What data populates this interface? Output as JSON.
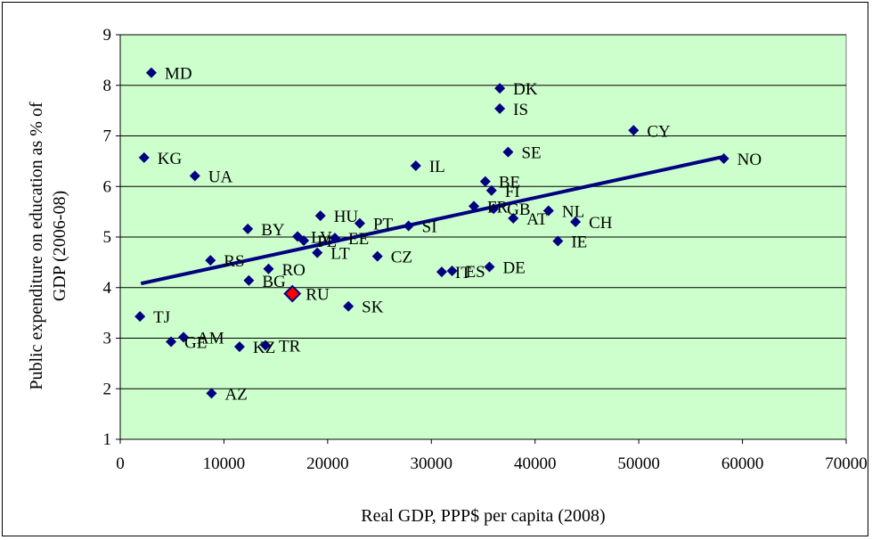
{
  "chart_data": {
    "type": "scatter",
    "title": "",
    "xlabel": "Real GDP, PPP$ per capita (2008)",
    "ylabel_line1": "Public expenditure on education as % of",
    "ylabel_line2": "GDP (2006-08)",
    "xlim": [
      0,
      70000
    ],
    "ylim": [
      1,
      9
    ],
    "x_ticks": [
      "0",
      "10000",
      "20000",
      "30000",
      "40000",
      "50000",
      "60000",
      "70000"
    ],
    "y_ticks": [
      "1",
      "2",
      "3",
      "4",
      "5",
      "6",
      "7",
      "8",
      "9"
    ],
    "grid": "horizontal",
    "plot_background": "#ccffcc",
    "marker_color": "#000080",
    "highlight_color": "#ff0000",
    "trendline": {
      "x": [
        2000,
        58000
      ],
      "y": [
        4.08,
        6.58
      ],
      "color": "#000080"
    },
    "points": [
      {
        "label": "MD",
        "x": 3000,
        "y": 8.25
      },
      {
        "label": "KG",
        "x": 2300,
        "y": 6.57
      },
      {
        "label": "UA",
        "x": 7200,
        "y": 6.21
      },
      {
        "label": "TJ",
        "x": 1900,
        "y": 3.43
      },
      {
        "label": "GE",
        "x": 4900,
        "y": 2.93
      },
      {
        "label": "AM",
        "x": 6100,
        "y": 3.02
      },
      {
        "label": "AZ",
        "x": 8800,
        "y": 1.91
      },
      {
        "label": "KZ",
        "x": 11500,
        "y": 2.83
      },
      {
        "label": "TR",
        "x": 14000,
        "y": 2.86
      },
      {
        "label": "RS",
        "x": 8700,
        "y": 4.54
      },
      {
        "label": "BG",
        "x": 12400,
        "y": 4.14
      },
      {
        "label": "BY",
        "x": 12300,
        "y": 5.16
      },
      {
        "label": "RO",
        "x": 14300,
        "y": 4.37
      },
      {
        "label": "RU",
        "x": 16600,
        "y": 3.88,
        "highlight": true
      },
      {
        "label": "LV",
        "x": 17100,
        "y": 5.01
      },
      {
        "label": "PL",
        "x": 17700,
        "y": 4.93
      },
      {
        "label": "HU",
        "x": 19300,
        "y": 5.42
      },
      {
        "label": "LT",
        "x": 19000,
        "y": 4.69
      },
      {
        "label": "EE",
        "x": 20700,
        "y": 4.98
      },
      {
        "label": "SK",
        "x": 22000,
        "y": 3.63
      },
      {
        "label": "PT",
        "x": 23100,
        "y": 5.27
      },
      {
        "label": "CZ",
        "x": 24800,
        "y": 4.62
      },
      {
        "label": "SI",
        "x": 27800,
        "y": 5.22
      },
      {
        "label": "IL",
        "x": 28500,
        "y": 6.41
      },
      {
        "label": "IT",
        "x": 31000,
        "y": 4.31
      },
      {
        "label": "ES",
        "x": 32000,
        "y": 4.33
      },
      {
        "label": "FR",
        "x": 34100,
        "y": 5.61
      },
      {
        "label": "BE",
        "x": 35200,
        "y": 6.1
      },
      {
        "label": "FI",
        "x": 35800,
        "y": 5.92
      },
      {
        "label": "GB",
        "x": 36000,
        "y": 5.56
      },
      {
        "label": "DE",
        "x": 35600,
        "y": 4.41
      },
      {
        "label": "DK",
        "x": 36600,
        "y": 7.94
      },
      {
        "label": "IS",
        "x": 36600,
        "y": 7.54
      },
      {
        "label": "SE",
        "x": 37400,
        "y": 6.68
      },
      {
        "label": "AT",
        "x": 37900,
        "y": 5.37
      },
      {
        "label": "NL",
        "x": 41300,
        "y": 5.52
      },
      {
        "label": "IE",
        "x": 42200,
        "y": 4.92
      },
      {
        "label": "CH",
        "x": 43900,
        "y": 5.3
      },
      {
        "label": "CY",
        "x": 49500,
        "y": 7.11
      },
      {
        "label": "NO",
        "x": 58200,
        "y": 6.55
      }
    ]
  }
}
